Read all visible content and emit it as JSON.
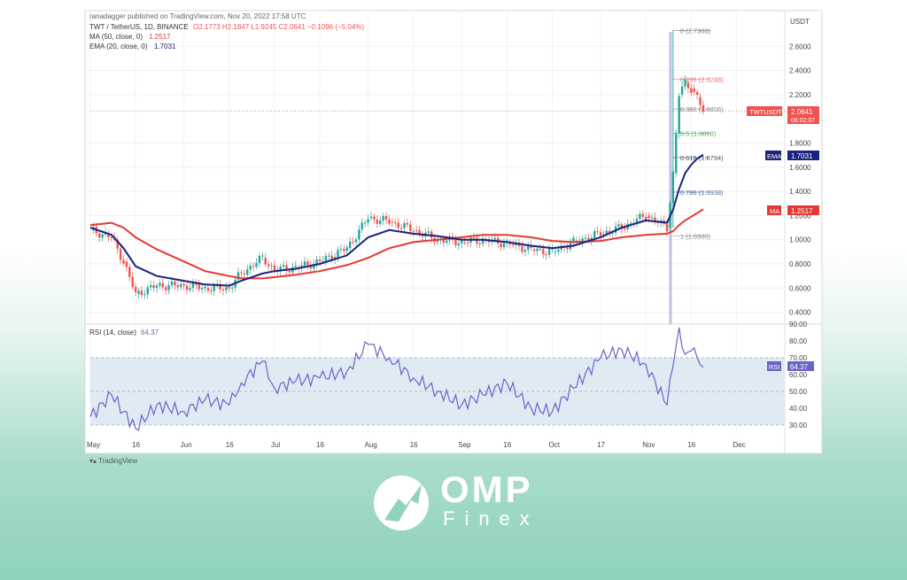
{
  "header": {
    "published_line": "ranadagger published on TradingView.com, Nov 20, 2022 17:58 UTC",
    "symbol_line": "TWT / TetherUS, 1D, BINANCE",
    "ohlc_line": "O2.1773 H2.1847 L1.9245 C2.0641 −0.1096 (−5.04%)",
    "ma_label": "MA (50, close, 0)",
    "ma_value": "1.2517",
    "ema_label": "EMA (20, close, 0)",
    "ema_value": "1.7031",
    "rsi_label": "RSI (14, close)",
    "rsi_value": "64.37"
  },
  "price_axis": {
    "currency": "USDT",
    "ticks": [
      "2.6000",
      "2.4000",
      "2.2000",
      "1.8000",
      "1.6000",
      "1.4000",
      "1.2000",
      "1.0000",
      "0.8000",
      "0.6000",
      "0.4000"
    ],
    "tick_values": [
      2.6,
      2.4,
      2.2,
      1.8,
      1.6,
      1.4,
      1.2,
      1.0,
      0.8,
      0.6,
      0.4
    ]
  },
  "rsi_axis": {
    "ticks": [
      "90.00",
      "80.00",
      "70.00",
      "60.00",
      "50.00",
      "40.00",
      "30.00"
    ],
    "tick_values": [
      90,
      80,
      70,
      60,
      50,
      40,
      30
    ]
  },
  "time_axis": {
    "labels": [
      "May",
      "16",
      "Jun",
      "16",
      "Jul",
      "16",
      "Aug",
      "16",
      "Sep",
      "16",
      "Oct",
      "17",
      "Nov",
      "16",
      "Dec"
    ],
    "positions_days": [
      0,
      15,
      31,
      46,
      61,
      76,
      92,
      107,
      123,
      138,
      153,
      169,
      184,
      199,
      214
    ]
  },
  "price_badges": {
    "symbol": "TWTUSDT",
    "last": "2.0641",
    "countdown": "06:02:07",
    "ema_tag": "EMA",
    "ema": "1.7031",
    "ma_tag": "MA",
    "ma": "1.2517",
    "rsi": "RSI",
    "rsi_val": "64.37"
  },
  "fib_levels": [
    {
      "label": "0 (2.7300)",
      "value": 2.73,
      "color": "#7a7a7a"
    },
    {
      "label": "0.236 (2.3288)",
      "value": 2.3288,
      "color": "#e57373"
    },
    {
      "label": "0.382 (2.0806)",
      "value": 2.0806,
      "color": "#888888"
    },
    {
      "label": "0.5 (1.8800)",
      "value": 1.88,
      "color": "#4caf50"
    },
    {
      "label": "0.618 (1.6794)",
      "value": 1.6794,
      "color": "#4a5a6a"
    },
    {
      "label": "0.786 (1.3938)",
      "value": 1.3938,
      "color": "#4a6fa5"
    },
    {
      "label": "1 (1.0300)",
      "value": 1.03,
      "color": "#888888"
    }
  ],
  "footer": {
    "tradingview": "TradingView"
  },
  "brand": {
    "name": "OMP",
    "sub": "Finex"
  },
  "colors": {
    "up": "#26a69a",
    "down": "#ef5350",
    "ma": "#e53935",
    "ema": "#1a237e",
    "rsi": "#6c63c7"
  },
  "chart_data": [
    {
      "type": "line",
      "title": "TWT / TetherUS, 1D, BINANCE",
      "ylabel": "USDT",
      "ylim": [
        0.3,
        2.8
      ],
      "x": [
        "May 1",
        "May 8",
        "May 12",
        "May 16",
        "May 23",
        "Jun 1",
        "Jun 8",
        "Jun 16",
        "Jun 20",
        "Jun 27",
        "Jul 1",
        "Jul 8",
        "Jul 16",
        "Jul 25",
        "Aug 1",
        "Aug 8",
        "Aug 16",
        "Aug 24",
        "Sep 1",
        "Sep 8",
        "Sep 16",
        "Sep 24",
        "Oct 1",
        "Oct 8",
        "Oct 17",
        "Oct 24",
        "Nov 1",
        "Nov 8",
        "Nov 10",
        "Nov 12",
        "Nov 14",
        "Nov 16",
        "Nov 18",
        "Nov 20"
      ],
      "series": [
        {
          "name": "TWTUSDT",
          "values": [
            1.08,
            1.02,
            0.82,
            0.55,
            0.62,
            0.62,
            0.6,
            0.6,
            0.72,
            0.85,
            0.75,
            0.77,
            0.82,
            0.93,
            1.18,
            1.15,
            1.08,
            1.0,
            0.98,
            1.0,
            0.97,
            0.92,
            0.9,
            0.98,
            1.05,
            1.1,
            1.2,
            1.1,
            1.55,
            2.2,
            2.3,
            2.25,
            2.18,
            2.06
          ]
        },
        {
          "name": "MA (50, close, 0)",
          "values": [
            1.12,
            1.14,
            1.1,
            1.02,
            0.92,
            0.82,
            0.74,
            0.7,
            0.68,
            0.68,
            0.69,
            0.71,
            0.74,
            0.79,
            0.85,
            0.93,
            0.98,
            1.0,
            1.02,
            1.04,
            1.04,
            1.02,
            0.99,
            0.98,
            0.99,
            1.02,
            1.04,
            1.05,
            1.07,
            1.12,
            1.16,
            1.19,
            1.22,
            1.2517
          ]
        },
        {
          "name": "EMA (20, close, 0)",
          "values": [
            1.1,
            1.04,
            0.93,
            0.78,
            0.7,
            0.66,
            0.63,
            0.62,
            0.66,
            0.72,
            0.74,
            0.76,
            0.8,
            0.87,
            1.02,
            1.08,
            1.05,
            1.03,
            1.0,
            1.0,
            0.98,
            0.95,
            0.93,
            0.95,
            1.02,
            1.1,
            1.16,
            1.14,
            1.25,
            1.42,
            1.55,
            1.62,
            1.67,
            1.7031
          ]
        }
      ]
    },
    {
      "type": "line",
      "title": "RSI (14, close)",
      "ylim": [
        25,
        92
      ],
      "x": [
        "May 1",
        "May 8",
        "May 12",
        "May 16",
        "May 23",
        "Jun 1",
        "Jun 8",
        "Jun 16",
        "Jun 20",
        "Jun 27",
        "Jul 1",
        "Jul 8",
        "Jul 16",
        "Jul 25",
        "Aug 1",
        "Aug 8",
        "Aug 16",
        "Aug 24",
        "Sep 1",
        "Sep 8",
        "Sep 16",
        "Sep 24",
        "Oct 1",
        "Oct 8",
        "Oct 17",
        "Oct 24",
        "Nov 1",
        "Nov 8",
        "Nov 10",
        "Nov 12",
        "Nov 14",
        "Nov 16",
        "Nov 18",
        "Nov 20"
      ],
      "series": [
        {
          "name": "RSI",
          "values": [
            35,
            48,
            38,
            28,
            42,
            38,
            45,
            42,
            55,
            68,
            52,
            56,
            58,
            62,
            78,
            70,
            58,
            50,
            42,
            48,
            55,
            40,
            38,
            52,
            70,
            75,
            66,
            42,
            65,
            88,
            72,
            74,
            70,
            64.37
          ]
        }
      ]
    }
  ]
}
